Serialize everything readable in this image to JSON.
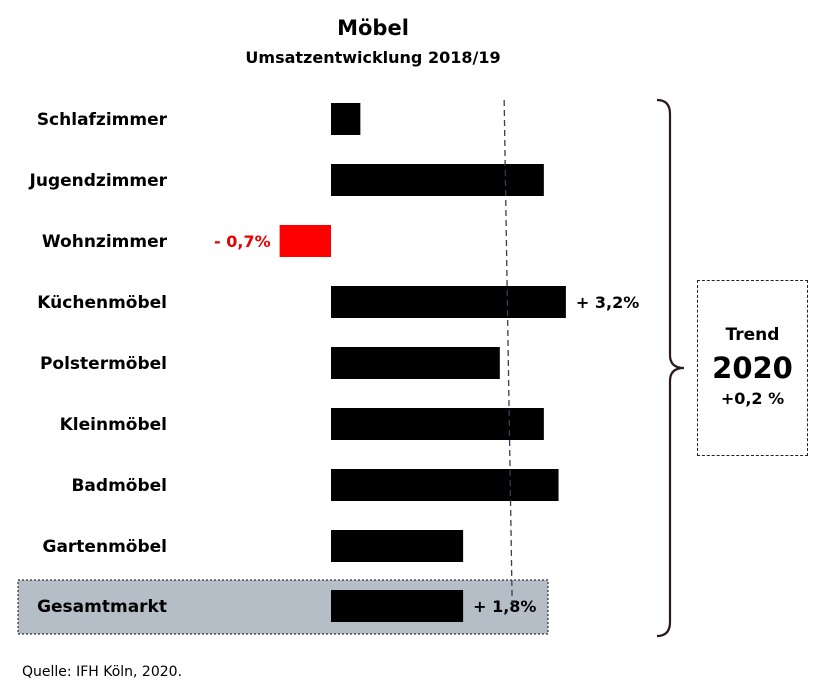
{
  "chart_data": {
    "type": "bar",
    "orientation": "horizontal",
    "title": "Möbel",
    "subtitle": "Umsatzentwicklung 2018/19",
    "categories": [
      "Schlafzimmer",
      "Jugendzimmer",
      "Wohnzimmer",
      "Küchenmöbel",
      "Polstermöbel",
      "Kleinmöbel",
      "Badmöbel",
      "Gartenmöbel",
      "Gesamtmarkt"
    ],
    "values": [
      0.4,
      2.9,
      -0.7,
      3.2,
      2.3,
      2.9,
      3.1,
      1.8,
      1.8
    ],
    "data_labels": [
      "",
      "",
      "- 0,7%",
      "+ 3,2%",
      "",
      "",
      "",
      "",
      "+ 1,8%"
    ],
    "reference_line": {
      "value": 2.4,
      "style": "dashed"
    },
    "highlighted_category": "Gesamtmarkt",
    "colors": {
      "positive": "#000000",
      "negative": "#ff0000",
      "highlight_bg": "#b5bec7",
      "negative_label": "#e60000"
    },
    "grid": false,
    "legend": "none"
  },
  "trend": {
    "label": "Trend",
    "year": "2020",
    "value": "+0,2 %"
  },
  "source": "Quelle: IFH Köln, 2020."
}
